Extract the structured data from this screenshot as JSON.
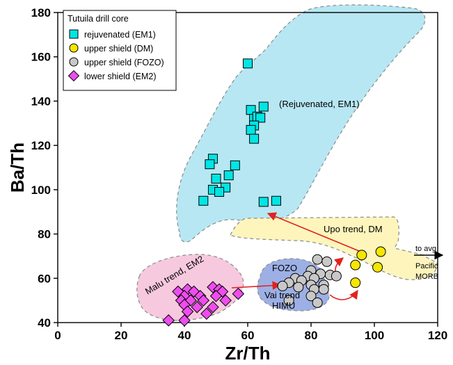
{
  "chart_data": {
    "type": "scatter",
    "xlabel": "Zr/Th",
    "ylabel": "Ba/Th",
    "xlim": [
      0,
      120
    ],
    "ylim": [
      40,
      180
    ],
    "xticks": [
      "0",
      "20",
      "40",
      "60",
      "80",
      "100",
      "120"
    ],
    "yticks": [
      "40",
      "60",
      "80",
      "100",
      "120",
      "140",
      "160",
      "180"
    ],
    "grid": false,
    "legend": {
      "title": "Tutuila drill core",
      "placement": "top-left"
    },
    "series": [
      {
        "name": "rejuvenated (EM1)",
        "marker": "square",
        "color": "#00e5e5",
        "points": [
          [
            60,
            157
          ],
          [
            61,
            136
          ],
          [
            65,
            137.5
          ],
          [
            62,
            132
          ],
          [
            63,
            133
          ],
          [
            64,
            132.5
          ],
          [
            62,
            129
          ],
          [
            61,
            127
          ],
          [
            62,
            123
          ],
          [
            49,
            114
          ],
          [
            48,
            111.5
          ],
          [
            56,
            111
          ],
          [
            54,
            106.5
          ],
          [
            50,
            105
          ],
          [
            53,
            101
          ],
          [
            49,
            100
          ],
          [
            51,
            99
          ],
          [
            46,
            95
          ],
          [
            65,
            94.5
          ],
          [
            69,
            95
          ]
        ]
      },
      {
        "name": "upper shield (DM)",
        "marker": "circle",
        "color": "#f5e600",
        "points": [
          [
            96,
            70.5
          ],
          [
            102,
            72
          ],
          [
            94,
            66
          ],
          [
            101,
            65
          ],
          [
            94,
            58
          ]
        ]
      },
      {
        "name": "upper shield (FOZO)",
        "marker": "circle",
        "color": "#c8c8c8",
        "points": [
          [
            82,
            68.5
          ],
          [
            85,
            67.5
          ],
          [
            80,
            63.5
          ],
          [
            83,
            62
          ],
          [
            86,
            61.5
          ],
          [
            75,
            60
          ],
          [
            79,
            61
          ],
          [
            81,
            60
          ],
          [
            88,
            61
          ],
          [
            77,
            59
          ],
          [
            73,
            58
          ],
          [
            80,
            57
          ],
          [
            84,
            57
          ],
          [
            71,
            56.5
          ],
          [
            76,
            56
          ],
          [
            81,
            55
          ],
          [
            84,
            55
          ],
          [
            80,
            52
          ],
          [
            73,
            50
          ],
          [
            82,
            49
          ]
        ]
      },
      {
        "name": "lower shield (EM2)",
        "marker": "diamond",
        "color": "#ee4dee",
        "points": [
          [
            38,
            54
          ],
          [
            41,
            55
          ],
          [
            43,
            54
          ],
          [
            49,
            56
          ],
          [
            51,
            55
          ],
          [
            52,
            54
          ],
          [
            40,
            52
          ],
          [
            45,
            52
          ],
          [
            50,
            52
          ],
          [
            39,
            50
          ],
          [
            42,
            50
          ],
          [
            46,
            50
          ],
          [
            53,
            50
          ],
          [
            57,
            53
          ],
          [
            40,
            48
          ],
          [
            44,
            47
          ],
          [
            49,
            47
          ],
          [
            41,
            45
          ],
          [
            47,
            44
          ],
          [
            40,
            41
          ],
          [
            35,
            41
          ]
        ]
      }
    ],
    "fields": [
      {
        "label": "(Rejuvenated, EM1)",
        "color": "#b7e7f3"
      },
      {
        "label": "Upo trend, DM",
        "color": "#fdf5bc"
      },
      {
        "label": "Malu trend, EM2",
        "color": "#f7c9de"
      },
      {
        "label": "FOZO",
        "color": "#9db0e5"
      },
      {
        "label": "Vai trend HIMU",
        "color": "#9db0e5"
      }
    ],
    "annotations": {
      "rejuvenated": "(Rejuvenated, EM1)",
      "upo": "Upo trend, DM",
      "malu": "Malu trend, EM2",
      "fozo": "FOZO",
      "vai_line1": "Vai trend",
      "vai_line2": "HIMU",
      "morb_line1": "to avg",
      "morb_line2": "Pacific",
      "morb_line3": "MORB"
    }
  }
}
